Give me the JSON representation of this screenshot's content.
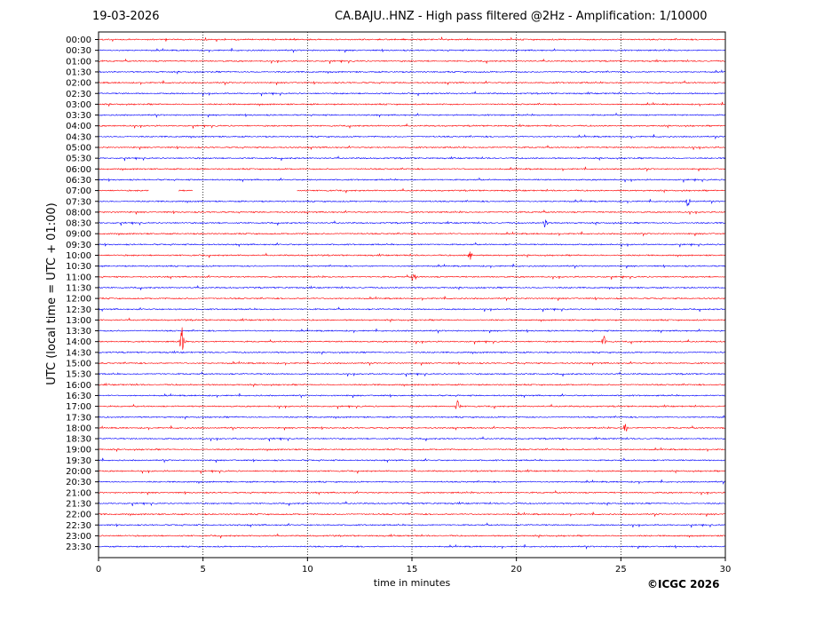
{
  "date": "19-03-2026",
  "title": "CA.BAJU..HNZ - High pass filtered @2Hz - Amplification: 1/10000",
  "copyright": "©ICGC 2026",
  "chart_data": {
    "type": "line",
    "title": "CA.BAJU..HNZ - High pass filtered @2Hz - Amplification: 1/10000",
    "xlabel": "time in minutes",
    "ylabel": "UTC (local time = UTC + 01:00)",
    "xlim": [
      0,
      30
    ],
    "x_ticks": [
      0,
      5,
      10,
      15,
      20,
      25,
      30
    ],
    "x_tick_labels": [
      "0",
      "5",
      "10",
      "15",
      "20",
      "25",
      "30"
    ],
    "grid": "vertical dotted",
    "series_colors": [
      "#ff0000",
      "#0000ff"
    ],
    "rows": [
      "00:00",
      "00:30",
      "01:00",
      "01:30",
      "02:00",
      "02:30",
      "03:00",
      "03:30",
      "04:00",
      "04:30",
      "05:00",
      "05:30",
      "06:00",
      "06:30",
      "07:00",
      "07:30",
      "08:00",
      "08:30",
      "09:00",
      "09:30",
      "10:00",
      "10:30",
      "11:00",
      "11:30",
      "12:00",
      "12:30",
      "13:00",
      "13:30",
      "14:00",
      "14:30",
      "15:00",
      "15:30",
      "16:00",
      "16:30",
      "17:00",
      "17:30",
      "18:00",
      "18:30",
      "19:00",
      "19:30",
      "20:00",
      "20:30",
      "21:00",
      "21:30",
      "22:00",
      "22:30",
      "23:00",
      "23:30"
    ],
    "events": [
      {
        "row": "08:30",
        "minute": 21.4,
        "amplitude": 0.6
      },
      {
        "row": "11:00",
        "minute": 15.1,
        "amplitude": 0.6
      },
      {
        "row": "14:00",
        "minute": 4.0,
        "amplitude": 1.3
      },
      {
        "row": "14:00",
        "minute": 24.2,
        "amplitude": 0.5
      },
      {
        "row": "17:00",
        "minute": 17.2,
        "amplitude": 0.6
      },
      {
        "row": "18:00",
        "minute": 25.2,
        "amplitude": 0.5
      },
      {
        "row": "07:30",
        "minute": 28.2,
        "amplitude": 0.5
      },
      {
        "row": "10:00",
        "minute": 17.8,
        "amplitude": 0.5
      }
    ],
    "gaps": [
      {
        "row": "07:00",
        "from": 2.4,
        "to": 3.8
      },
      {
        "row": "07:00",
        "from": 4.5,
        "to": 9.5
      }
    ]
  }
}
